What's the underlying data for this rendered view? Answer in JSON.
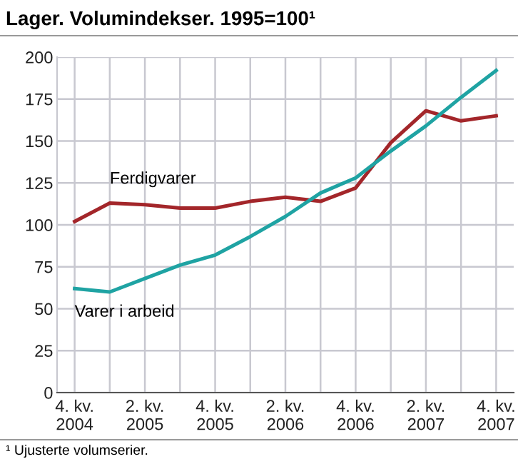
{
  "chart_data": {
    "type": "line",
    "title": "Lager. Volumindekser. 1995=100¹",
    "categories": [
      "4. kv.\n2004",
      null,
      "2. kv.\n2005",
      null,
      "4. kv.\n2005",
      null,
      "2. kv.\n2006",
      null,
      "4. kv.\n2006",
      null,
      "2. kv.\n2007",
      null,
      "4. kv.\n2007"
    ],
    "series": [
      {
        "name": "Ferdigvarer",
        "color": "#a3262a",
        "values": [
          102,
          113,
          112,
          110,
          110,
          114,
          116.5,
          114,
          122,
          149,
          168,
          162,
          165
        ]
      },
      {
        "name": "Varer i arbeid",
        "color": "#1fa3a3",
        "values": [
          62,
          60,
          68,
          76,
          82,
          93,
          105,
          119,
          128,
          144,
          159,
          176,
          192
        ]
      }
    ],
    "ylim": [
      0,
      200
    ],
    "yticks": [
      0,
      25,
      50,
      75,
      100,
      125,
      150,
      175,
      200
    ],
    "grid": true,
    "legend": false,
    "annotations": [
      "¹ Ujusterte volumserier."
    ]
  }
}
